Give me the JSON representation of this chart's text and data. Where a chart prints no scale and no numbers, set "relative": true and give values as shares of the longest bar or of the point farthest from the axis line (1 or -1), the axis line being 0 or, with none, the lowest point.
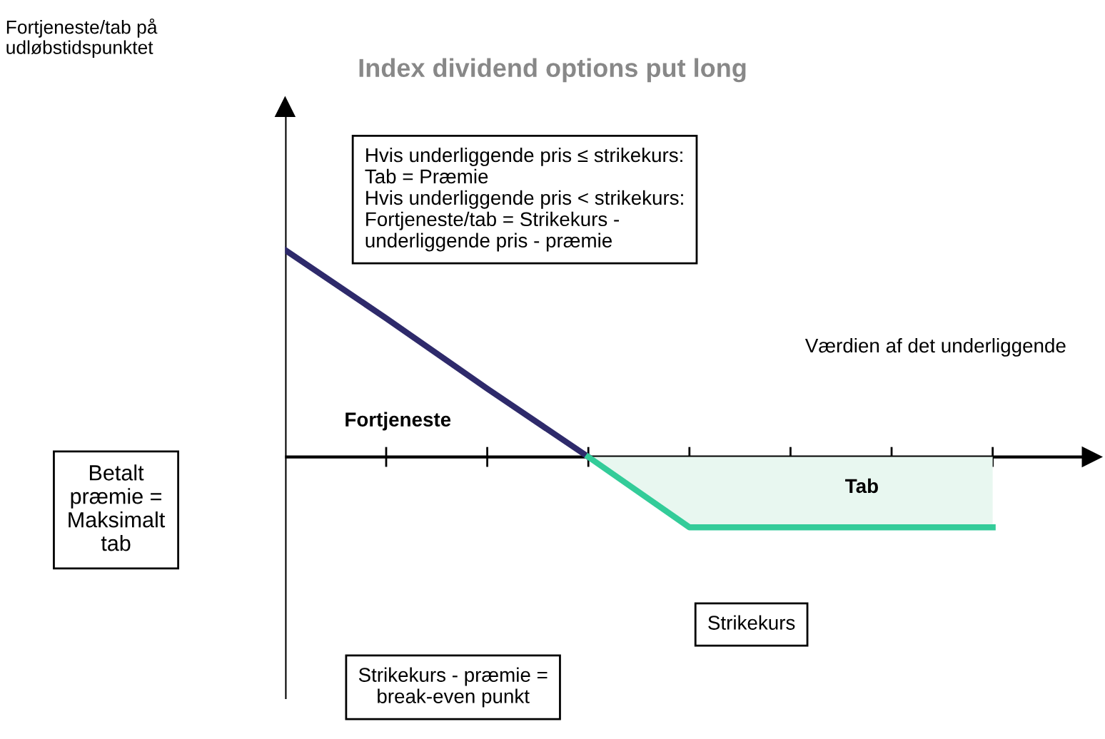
{
  "chart_data": {
    "type": "line",
    "title": "Index dividend options put long",
    "xlabel": "Værdien af det underliggende",
    "relative": true,
    "marker": "none",
    "line_style": "solid",
    "categories": [
      null,
      null,
      null,
      null,
      null,
      null,
      null,
      null
    ],
    "series": [
      {
        "color": "#2e2a6b",
        "values": [
          1,
          0.67,
          0.33,
          0,
          null,
          null,
          null,
          null
        ]
      },
      {
        "type": "area",
        "color": "#33cc99",
        "values": [
          null,
          null,
          null,
          0,
          -0.34,
          -0.34,
          -0.34,
          -0.34
        ]
      }
    ],
    "annotations": [
      "Fortjeneste/tab på\nudløbstidspunktet",
      "Hvis underliggende pris ≤ strikekurs:\nTab = Præmie\nHvis underliggende pris < strikekurs:\nFortjeneste/tab = Strikekurs -\nunderliggende pris - præmie",
      "Fortjeneste",
      "Tab",
      "Betalt\npræmie =\nMaksimalt\ntab",
      "Strikekurs",
      "Strikekurs - præmie =\nbreak-even punkt"
    ]
  }
}
